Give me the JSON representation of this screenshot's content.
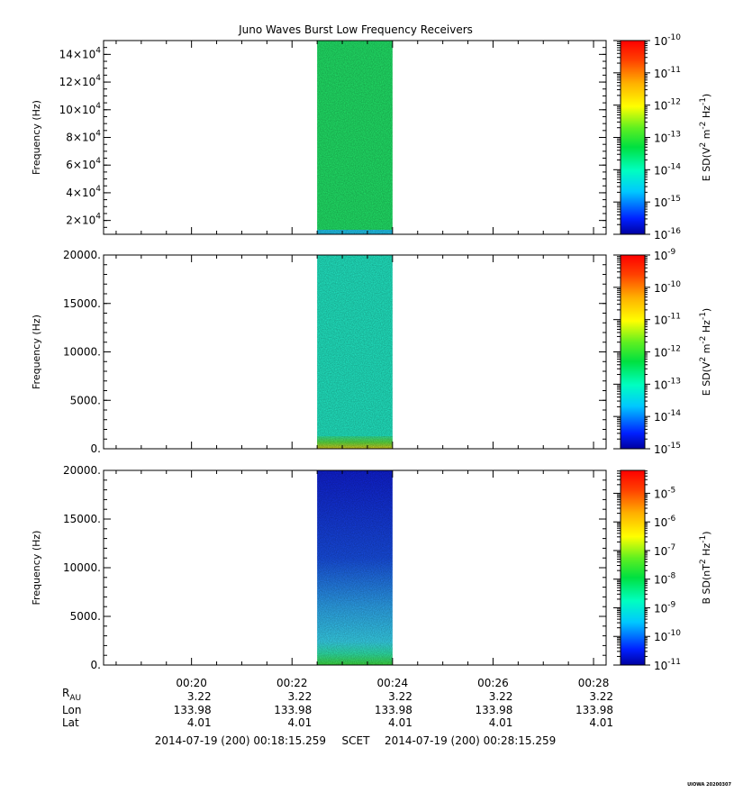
{
  "title": "Juno Waves Burst Low Frequency Receivers",
  "chart_data": [
    {
      "type": "heatmap",
      "panel": 1,
      "ylabel": "Frequency (Hz)",
      "ylim": [
        10000,
        150000
      ],
      "yticks": [
        {
          "value": 20000,
          "mantissa": "2",
          "exp": "4"
        },
        {
          "value": 40000,
          "mantissa": "4",
          "exp": "4"
        },
        {
          "value": 60000,
          "mantissa": "6",
          "exp": "4"
        },
        {
          "value": 80000,
          "mantissa": "8",
          "exp": "4"
        },
        {
          "value": 100000,
          "mantissa": "10",
          "exp": "4"
        },
        {
          "value": 120000,
          "mantissa": "12",
          "exp": "4"
        },
        {
          "value": 140000,
          "mantissa": "14",
          "exp": "4"
        }
      ],
      "data_time_range": [
        "00:22:30",
        "00:24:00"
      ],
      "colorbar": {
        "label": "E SD(V²m⁻²Hz⁻¹)",
        "label_parts": [
          "E SD(V",
          "2",
          " m",
          "-2",
          " Hz",
          "-1",
          ")"
        ],
        "scale": "log",
        "range_exp": [
          -16,
          -10
        ],
        "ticks": [
          {
            "base": "10",
            "exp": "-10"
          },
          {
            "base": "10",
            "exp": "-11"
          },
          {
            "base": "10",
            "exp": "-12"
          },
          {
            "base": "10",
            "exp": "-13"
          },
          {
            "base": "10",
            "exp": "-14"
          },
          {
            "base": "10",
            "exp": "-15"
          },
          {
            "base": "10",
            "exp": "-16"
          }
        ]
      },
      "description_colors": {
        "main": "#22e86a",
        "low_band": "#22c8f0"
      }
    },
    {
      "type": "heatmap",
      "panel": 2,
      "ylabel": "Frequency (Hz)",
      "ylim": [
        0,
        20000
      ],
      "yticks": [
        {
          "value": 0,
          "label": "0."
        },
        {
          "value": 5000,
          "label": "5000."
        },
        {
          "value": 10000,
          "label": "10000."
        },
        {
          "value": 15000,
          "label": "15000."
        },
        {
          "value": 20000,
          "label": "20000."
        }
      ],
      "data_time_range": [
        "00:22:30",
        "00:24:00"
      ],
      "colorbar": {
        "label": "E SD(V²m⁻²Hz⁻¹)",
        "label_parts": [
          "E SD(V",
          "2",
          " m",
          "-2",
          " Hz",
          "-1",
          ")"
        ],
        "scale": "log",
        "range_exp": [
          -15,
          -9
        ],
        "ticks": [
          {
            "base": "10",
            "exp": "-9"
          },
          {
            "base": "10",
            "exp": "-10"
          },
          {
            "base": "10",
            "exp": "-11"
          },
          {
            "base": "10",
            "exp": "-12"
          },
          {
            "base": "10",
            "exp": "-13"
          },
          {
            "base": "10",
            "exp": "-14"
          },
          {
            "base": "10",
            "exp": "-15"
          }
        ]
      },
      "description_colors": {
        "main": "#22ecc8",
        "low_band": "#c8e020"
      }
    },
    {
      "type": "heatmap",
      "panel": 3,
      "ylabel": "Frequency (Hz)",
      "ylim": [
        0,
        20000
      ],
      "yticks": [
        {
          "value": 0,
          "label": "0."
        },
        {
          "value": 5000,
          "label": "5000."
        },
        {
          "value": 10000,
          "label": "10000."
        },
        {
          "value": 15000,
          "label": "15000."
        },
        {
          "value": 20000,
          "label": "20000."
        }
      ],
      "data_time_range": [
        "00:22:30",
        "00:24:00"
      ],
      "colorbar": {
        "label": "B SD(nT²Hz⁻¹)",
        "label_parts": [
          "B SD(nT",
          "2",
          " Hz",
          "-1",
          ")"
        ],
        "scale": "log",
        "range_exp": [
          -11,
          -4.2
        ],
        "ticks": [
          {
            "base": "10",
            "exp": "-5"
          },
          {
            "base": "10",
            "exp": "-6"
          },
          {
            "base": "10",
            "exp": "-7"
          },
          {
            "base": "10",
            "exp": "-8"
          },
          {
            "base": "10",
            "exp": "-9"
          },
          {
            "base": "10",
            "exp": "-10"
          },
          {
            "base": "10",
            "exp": "-11"
          }
        ]
      },
      "description_colors": {
        "top": "#1028d8",
        "middle": "#30a0f0",
        "low_band": "#28e860"
      }
    }
  ],
  "xaxis": {
    "range": [
      "00:18:15",
      "00:28:15"
    ],
    "ticks": [
      "00:20",
      "00:22",
      "00:24",
      "00:26",
      "00:28"
    ],
    "ephemeris": [
      {
        "label": "R",
        "sub": "AU",
        "values": [
          "3.22",
          "3.22",
          "3.22",
          "3.22",
          "3.22"
        ]
      },
      {
        "label": "Lon",
        "values": [
          "133.98",
          "133.98",
          "133.98",
          "133.98",
          "133.98"
        ]
      },
      {
        "label": "Lat",
        "values": [
          "4.01",
          "4.01",
          "4.01",
          "4.01",
          "4.01"
        ]
      }
    ],
    "time_start": "2014-07-19 (200) 00:18:15.259",
    "time_system": "SCET",
    "time_end": "2014-07-19 (200) 00:28:15.259"
  },
  "footer_stamp": "UIOWA 20200307"
}
